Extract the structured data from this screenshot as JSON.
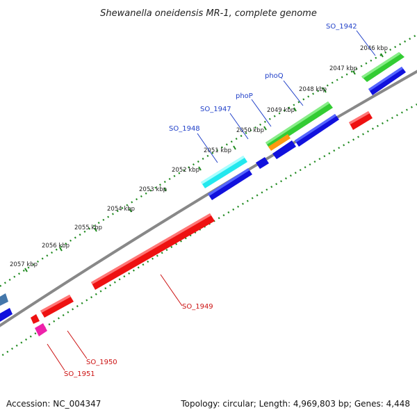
{
  "title": "Shewanella oneidensis MR-1, complete genome",
  "footer": {
    "accession": "Accession: NC_004347",
    "summary": "Topology: circular; Length: 4,969,803 bp; Genes: 4,448"
  },
  "scale_labels": [
    "2046 kbp",
    "2047 kbp",
    "2048 kbp",
    "2049 kbp",
    "2050 kbp",
    "2051 kbp",
    "2052 kbp",
    "2053 kbp",
    "2054 kbp",
    "2055 kbp",
    "2056 kbp",
    "2057 kbp"
  ],
  "gene_labels_forward": [
    "SO_1942",
    "phoQ",
    "phoP",
    "SO_1947",
    "SO_1948"
  ],
  "gene_labels_reverse": [
    "SO_1949",
    "SO_1950",
    "SO_1951"
  ],
  "colors": {
    "backbone": "#888888",
    "scale_ticks": "#1f8a1f",
    "cds_forward": "#1111dd",
    "cds_reverse": "#ee1111",
    "highlight_green": "#33cc33",
    "highlight_cyan": "#22e8ee",
    "highlight_orange": "#ff9911",
    "highlight_magenta": "#ee22aa",
    "highlight_steel": "#4477aa",
    "label_forward": "#1f3fc8",
    "label_reverse": "#cc1111"
  }
}
